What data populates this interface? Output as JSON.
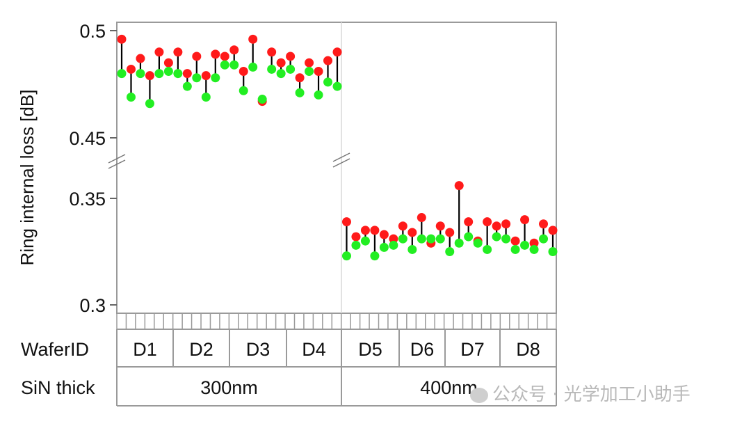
{
  "chart_data": {
    "type": "scatter",
    "ylabel": "Ring internal loss [dB]",
    "y_ticks": [
      "0.5",
      "0.45",
      "0.35",
      "0.3"
    ],
    "y_segments": [
      [
        0.3,
        0.35
      ],
      [
        0.45,
        0.5
      ]
    ],
    "axis_break": true,
    "grid": false,
    "colors": {
      "high": "#ff1a1a",
      "low": "#22ee22",
      "stem": "#000000",
      "frame": "#9a9a9a"
    },
    "table_rows": [
      {
        "label": "WaferID",
        "cells": [
          "D1",
          "D2",
          "D3",
          "D4",
          "D5",
          "D6",
          "D7",
          "D8"
        ]
      },
      {
        "label": "SiN thick",
        "cells": [
          "300nm",
          "400nm"
        ]
      }
    ],
    "pairs": [
      [
        0.496,
        0.48
      ],
      [
        0.482,
        0.469
      ],
      [
        0.487,
        0.48
      ],
      [
        0.479,
        0.466
      ],
      [
        0.49,
        0.48
      ],
      [
        0.485,
        0.481
      ],
      [
        0.49,
        0.48
      ],
      [
        0.48,
        0.474
      ],
      [
        0.488,
        0.478
      ],
      [
        0.479,
        0.469
      ],
      [
        0.489,
        0.478
      ],
      [
        0.488,
        0.484
      ],
      [
        0.491,
        0.484
      ],
      [
        0.481,
        0.472
      ],
      [
        0.496,
        0.483
      ],
      [
        0.467,
        0.468
      ],
      [
        0.49,
        0.482
      ],
      [
        0.485,
        0.48
      ],
      [
        0.488,
        0.482
      ],
      [
        0.478,
        0.471
      ],
      [
        0.485,
        0.481
      ],
      [
        0.481,
        0.47
      ],
      [
        0.486,
        0.476
      ],
      [
        0.49,
        0.474
      ],
      [
        0.339,
        0.323
      ],
      [
        0.332,
        0.328
      ],
      [
        0.335,
        0.33
      ],
      [
        0.335,
        0.323
      ],
      [
        0.333,
        0.327
      ],
      [
        0.331,
        0.328
      ],
      [
        0.337,
        0.331
      ],
      [
        0.334,
        0.326
      ],
      [
        0.341,
        0.331
      ],
      [
        0.329,
        0.331
      ],
      [
        0.337,
        0.331
      ],
      [
        0.334,
        0.325
      ],
      [
        0.356,
        0.329
      ],
      [
        0.339,
        0.332
      ],
      [
        0.33,
        0.329
      ],
      [
        0.339,
        0.326
      ],
      [
        0.337,
        0.332
      ],
      [
        0.338,
        0.331
      ],
      [
        0.33,
        0.326
      ],
      [
        0.34,
        0.328
      ],
      [
        0.329,
        0.326
      ],
      [
        0.338,
        0.331
      ],
      [
        0.335,
        0.325
      ]
    ]
  },
  "watermark": "公众号 · 光学加工小助手"
}
